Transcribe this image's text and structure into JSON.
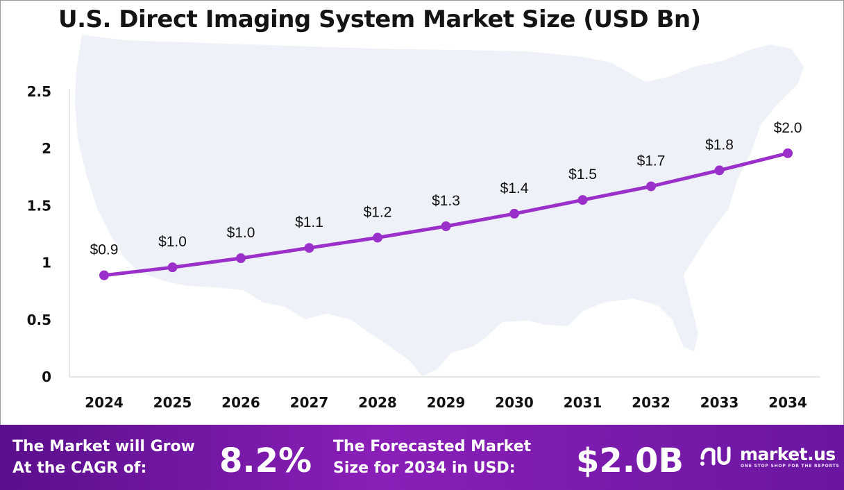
{
  "title": "U.S. Direct Imaging System Market Size (USD Bn)",
  "chart_data": {
    "type": "line",
    "title": "U.S. Direct Imaging System Market Size (USD Bn)",
    "x": [
      "2024",
      "2025",
      "2026",
      "2027",
      "2028",
      "2029",
      "2030",
      "2031",
      "2032",
      "2033",
      "2034"
    ],
    "values": [
      0.89,
      0.96,
      1.04,
      1.13,
      1.22,
      1.32,
      1.43,
      1.55,
      1.67,
      1.81,
      1.96
    ],
    "data_labels": [
      "$0.9",
      "$1.0",
      "$1.0",
      "$1.1",
      "$1.2",
      "$1.3",
      "$1.4",
      "$1.5",
      "$1.7",
      "$1.8",
      "$2.0"
    ],
    "y_ticks": [
      "0",
      "0.5",
      "1",
      "1.5",
      "2",
      "2.5"
    ],
    "ylim": [
      0,
      2.5
    ],
    "grid": false,
    "line_color": "#9b2fc9"
  },
  "banner": {
    "cagr_label": "The Market will Grow\nAt the CAGR of:",
    "cagr_value": "8.2%",
    "forecast_label": "The Forecasted Market\nSize for 2034 in USD:",
    "forecast_value": "$2.0B"
  },
  "logo": {
    "name": "market.us",
    "tagline": "ONE STOP SHOP FOR THE REPORTS",
    "icon": "market-us-logo-icon"
  }
}
